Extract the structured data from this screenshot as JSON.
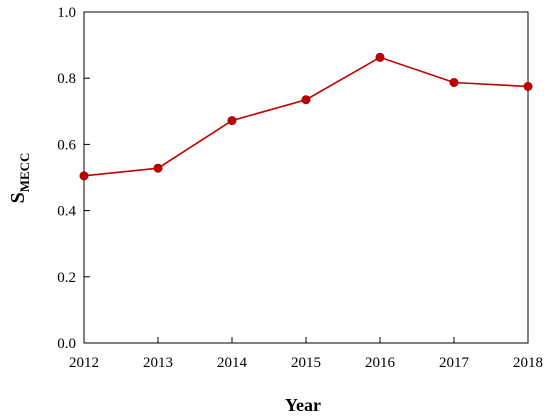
{
  "chart_data": {
    "type": "line",
    "x": [
      "2012",
      "2013",
      "2014",
      "2015",
      "2016",
      "2017",
      "2018"
    ],
    "series": [
      {
        "values": [
          0.505,
          0.528,
          0.672,
          0.735,
          0.863,
          0.787,
          0.775
        ],
        "color": "#c00000"
      }
    ],
    "xlabel": "Year",
    "ylabel": {
      "main": "S",
      "subscript": "MECC"
    },
    "ylim": [
      0.0,
      1.0
    ],
    "yticks": [
      "0.0",
      "0.2",
      "0.4",
      "0.6",
      "0.8",
      "1.0"
    ],
    "grid": false,
    "axis_color": "#000000"
  }
}
